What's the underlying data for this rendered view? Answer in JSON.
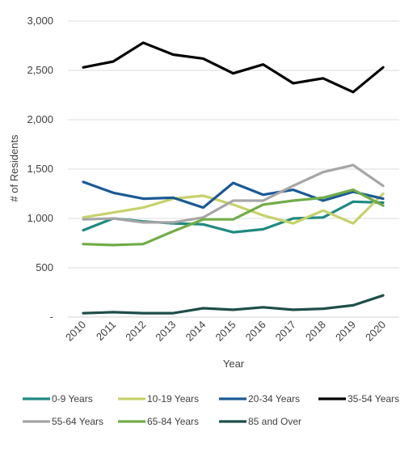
{
  "chart_data": {
    "type": "line",
    "title": "",
    "xlabel": "Year",
    "ylabel": "# of Residents",
    "x": [
      "2010",
      "2011",
      "2012",
      "2013",
      "2014",
      "2015",
      "2016",
      "2017",
      "2018",
      "2019",
      "2020"
    ],
    "ylim": [
      0,
      3000
    ],
    "yticks": [
      0,
      500,
      1000,
      1500,
      2000,
      2500,
      3000
    ],
    "ytick_labels": [
      "-",
      "500",
      "1,000",
      "1,500",
      "2,000",
      "2,500",
      "3,000"
    ],
    "grid": true,
    "legend_position": "bottom",
    "series": [
      {
        "name": "0-9 Years",
        "color": "#1f8a80",
        "values": [
          880,
          1000,
          970,
          950,
          940,
          860,
          890,
          1000,
          1010,
          1170,
          1160
        ]
      },
      {
        "name": "10-19 Years",
        "color": "#c6d26a",
        "values": [
          1010,
          1060,
          1110,
          1200,
          1230,
          1140,
          1030,
          950,
          1080,
          950,
          1250
        ]
      },
      {
        "name": "20-34 Years",
        "color": "#1a5a96",
        "values": [
          1370,
          1260,
          1200,
          1210,
          1110,
          1360,
          1240,
          1290,
          1180,
          1270,
          1200
        ]
      },
      {
        "name": "35-54 Years",
        "color": "#000000",
        "values": [
          2530,
          2590,
          2780,
          2660,
          2620,
          2470,
          2560,
          2370,
          2420,
          2280,
          2530
        ]
      },
      {
        "name": "55-64 Years",
        "color": "#a6a6a6",
        "values": [
          990,
          1000,
          960,
          960,
          1010,
          1180,
          1180,
          1330,
          1470,
          1540,
          1330
        ]
      },
      {
        "name": "65-84 Years",
        "color": "#70ad47",
        "values": [
          740,
          730,
          740,
          870,
          990,
          990,
          1140,
          1180,
          1210,
          1290,
          1130
        ]
      },
      {
        "name": "85 and Over",
        "color": "#1f4e49",
        "values": [
          40,
          50,
          40,
          40,
          90,
          75,
          100,
          75,
          85,
          120,
          220
        ]
      }
    ]
  }
}
